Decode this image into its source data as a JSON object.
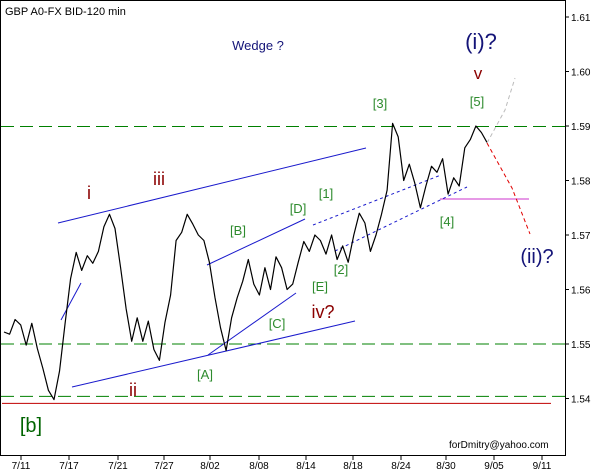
{
  "chart_data": {
    "type": "line",
    "title": "GBP A0-FX BID-120 min",
    "watermark": "forDmitry@yahoo.com",
    "x_ticks": [
      "7/11",
      "7/17",
      "7/21",
      "7/27",
      "8/02",
      "8/08",
      "8/14",
      "8/18",
      "8/24",
      "8/30",
      "9/05",
      "9/11"
    ],
    "y_ticks": [
      "1.61",
      "1.60",
      "1.59",
      "1.58",
      "1.57",
      "1.56",
      "1.55",
      "1.54"
    ],
    "ylim": [
      1.5322,
      1.6131
    ],
    "grid": false,
    "series": [
      {
        "values": [
          [
            0,
            1.5522
          ],
          [
            1,
            1.5518
          ],
          [
            2,
            1.5545
          ],
          [
            3,
            1.5535
          ],
          [
            4,
            1.5498
          ],
          [
            5,
            1.5538
          ],
          [
            6,
            1.5492
          ],
          [
            7,
            1.5455
          ],
          [
            8,
            1.5415
          ],
          [
            9,
            1.5398
          ],
          [
            10,
            1.545
          ],
          [
            11,
            1.5538
          ],
          [
            12,
            1.562
          ],
          [
            13,
            1.5668
          ],
          [
            14,
            1.5635
          ],
          [
            15,
            1.5662
          ],
          [
            16,
            1.5648
          ],
          [
            17,
            1.567
          ],
          [
            18,
            1.5715
          ],
          [
            19,
            1.5738
          ],
          [
            20,
            1.5712
          ],
          [
            21,
            1.564
          ],
          [
            22,
            1.5565
          ],
          [
            23,
            1.5505
          ],
          [
            24,
            1.5548
          ],
          [
            25,
            1.5505
          ],
          [
            26,
            1.5542
          ],
          [
            27,
            1.549
          ],
          [
            28,
            1.547
          ],
          [
            29,
            1.554
          ],
          [
            30,
            1.559
          ],
          [
            31,
            1.569
          ],
          [
            32,
            1.5705
          ],
          [
            33,
            1.5738
          ],
          [
            34,
            1.572
          ],
          [
            35,
            1.57
          ],
          [
            36,
            1.569
          ],
          [
            37,
            1.565
          ],
          [
            38,
            1.5585
          ],
          [
            39,
            1.553
          ],
          [
            40,
            1.5488
          ],
          [
            41,
            1.5548
          ],
          [
            42,
            1.5585
          ],
          [
            43,
            1.5615
          ],
          [
            44,
            1.5655
          ],
          [
            45,
            1.561
          ],
          [
            46,
            1.559
          ],
          [
            47,
            1.564
          ],
          [
            48,
            1.56
          ],
          [
            49,
            1.566
          ],
          [
            50,
            1.564
          ],
          [
            51,
            1.56
          ],
          [
            52,
            1.561
          ],
          [
            53,
            1.565
          ],
          [
            54,
            1.5688
          ],
          [
            55,
            1.567
          ],
          [
            56,
            1.57
          ],
          [
            57,
            1.569
          ],
          [
            58,
            1.5665
          ],
          [
            59,
            1.57
          ],
          [
            60,
            1.5655
          ],
          [
            61,
            1.568
          ],
          [
            62,
            1.565
          ],
          [
            63,
            1.57
          ],
          [
            64,
            1.574
          ],
          [
            65,
            1.5722
          ],
          [
            66,
            1.567
          ],
          [
            67,
            1.57
          ],
          [
            68,
            1.5738
          ],
          [
            69,
            1.5782
          ],
          [
            70,
            1.5905
          ],
          [
            71,
            1.588
          ],
          [
            72,
            1.58
          ],
          [
            73,
            1.583
          ],
          [
            74,
            1.5795
          ],
          [
            75,
            1.575
          ],
          [
            76,
            1.579
          ],
          [
            77,
            1.5826
          ],
          [
            78,
            1.5815
          ],
          [
            79,
            1.584
          ],
          [
            80,
            1.5775
          ],
          [
            81,
            1.5805
          ],
          [
            82,
            1.579
          ],
          [
            83,
            1.586
          ],
          [
            84,
            1.5875
          ],
          [
            85,
            1.59
          ],
          [
            86,
            1.5888
          ],
          [
            87,
            1.587
          ]
        ],
        "x_range": [
          0,
          87
        ]
      }
    ],
    "annotations": [
      "Wedge ?",
      "(i)?",
      "v",
      "[3]",
      "[5]",
      "i",
      "iii",
      "[1]",
      "[D]",
      "[B]",
      "[4]",
      "[2]",
      "[E]",
      "iv?",
      "[C]",
      "(ii)?",
      "[A]",
      "ii",
      "[b]"
    ],
    "reference_lines": [
      {
        "style": "dashed",
        "color": "#008000",
        "y": 1.5899
      },
      {
        "style": "dashed",
        "color": "#008000",
        "y": 1.55
      },
      {
        "style": "dashed",
        "color": "#008000",
        "y": 1.5404
      },
      {
        "style": "solid",
        "color": "#c00000",
        "y": 1.5391
      },
      {
        "style": "solid",
        "color": "#cc33cc",
        "y": 1.5766
      }
    ],
    "colors": {
      "price_line": "#000000",
      "channel": "#1a1acc",
      "dotted_channel": "#1a1acc",
      "label_navy": "#141478",
      "label_green": "#2e8b2e",
      "label_maroon": "#8b0000",
      "label_darkgreen": "#006400",
      "forecast_red": "#e00000",
      "forecast_gray": "#bbbbbb"
    }
  }
}
